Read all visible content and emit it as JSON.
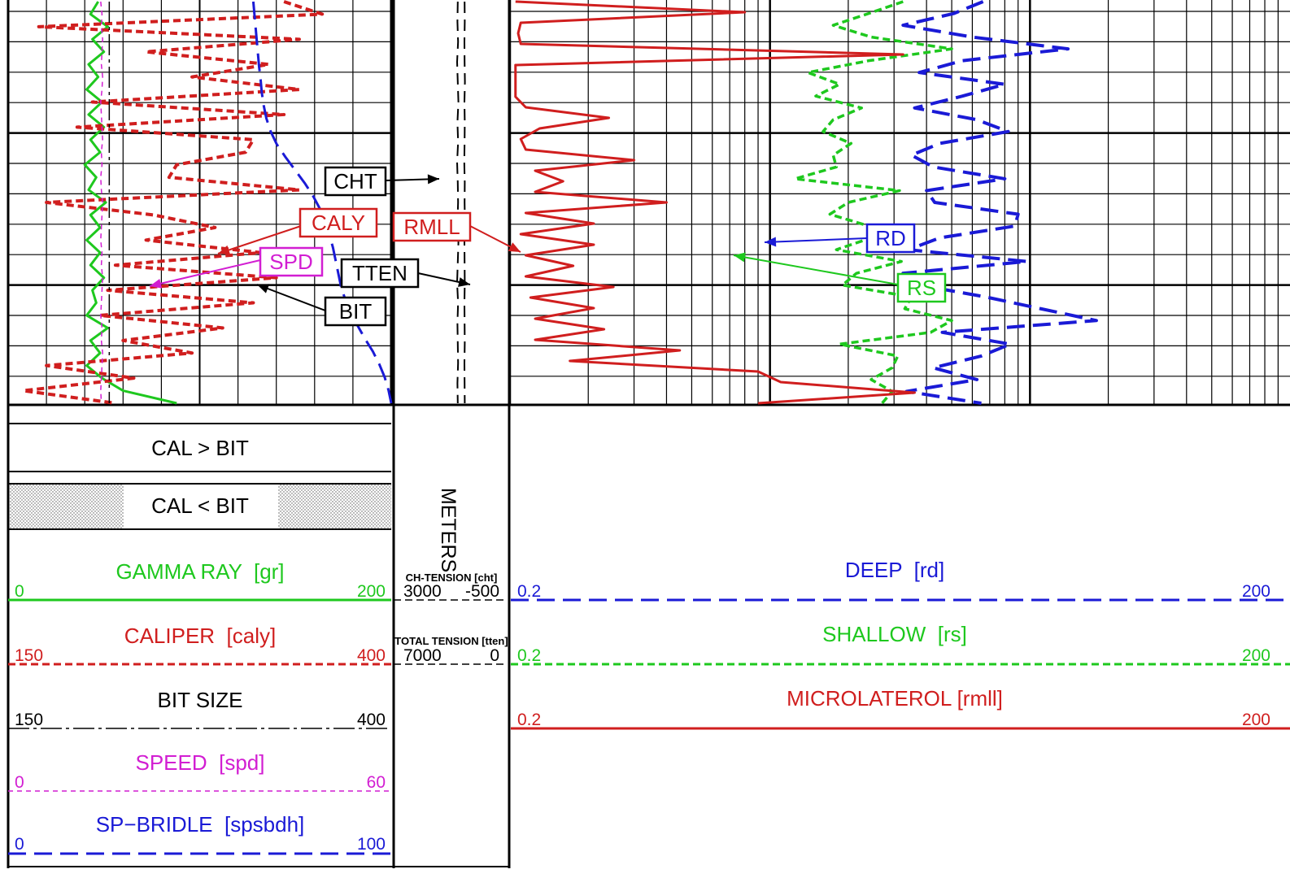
{
  "colors": {
    "gamma": "#1ec81e",
    "caliper": "#d01e1e",
    "bit": "#000000",
    "speed": "#d21ed2",
    "sp": "#1a1ad6",
    "deep": "#1a1ad6",
    "shallow": "#1ec81e",
    "micro": "#d01e1e",
    "grid": "#000000"
  },
  "fill_legend": {
    "cal_gt_bit": "CAL  >  BIT",
    "cal_lt_bit": "CAL  <  BIT"
  },
  "depth_label": "METERS",
  "left_scales": [
    {
      "id": "gamma",
      "label": "GAMMA RAY",
      "mnemonic": "[gr]",
      "min": "0",
      "max": "200",
      "color": "#1ec81e",
      "style": "solid"
    },
    {
      "id": "caliper",
      "label": "CALIPER",
      "mnemonic": "[caly]",
      "min": "150",
      "max": "400",
      "color": "#d01e1e",
      "style": "dashed"
    },
    {
      "id": "bit",
      "label": "BIT SIZE",
      "mnemonic": "",
      "min": "150",
      "max": "400",
      "color": "#000000",
      "style": "dashdot"
    },
    {
      "id": "speed",
      "label": "SPEED",
      "mnemonic": "[spd]",
      "min": "0",
      "max": "60",
      "color": "#d21ed2",
      "style": "thin-dashed"
    },
    {
      "id": "sp",
      "label": "SP−BRIDLE",
      "mnemonic": "[spsbdh]",
      "min": "0",
      "max": "100",
      "color": "#1a1ad6",
      "style": "long-dashed"
    }
  ],
  "mid_scales": [
    {
      "label": "CH-TENSION [cht]",
      "min": "3000",
      "max": "-500"
    },
    {
      "label": "TOTAL TENSION [tten]",
      "min": "7000",
      "max": "0"
    }
  ],
  "right_scales": [
    {
      "id": "deep",
      "label": "DEEP",
      "mnemonic": "[rd]",
      "min": "0.2",
      "max": "200",
      "color": "#1a1ad6",
      "style": "long-dashed"
    },
    {
      "id": "shallow",
      "label": "SHALLOW",
      "mnemonic": "[rs]",
      "min": "0.2",
      "max": "200",
      "color": "#1ec81e",
      "style": "dashed"
    },
    {
      "id": "micro",
      "label": "MICROLATEROL",
      "mnemonic": "[rmll]",
      "min": "0.2",
      "max": "200",
      "color": "#d01e1e",
      "style": "solid"
    }
  ],
  "chart_data": {
    "type": "line",
    "tracks": [
      {
        "name": "track1",
        "scale": "linear",
        "series": [
          {
            "name": "GAMMA RAY",
            "mnemonic": "gr",
            "range": [
              0,
              200
            ],
            "label": "",
            "values": [
              47,
              43,
              52,
              44,
              50,
              42,
              47,
              41,
              49,
              42,
              50,
              43,
              48,
              40,
              46,
              42,
              51,
              43,
              48,
              41,
              48,
              43,
              50,
              44,
              46,
              41,
              52,
              43,
              48,
              41,
              49,
              60,
              88
            ]
          },
          {
            "name": "CALIPER",
            "mnemonic": "caly",
            "range": [
              150,
              400
            ],
            "label": "CALY",
            "values": [
              330,
              355,
              170,
              340,
              240,
              320,
              270,
              340,
              205,
              330,
              195,
              310,
              305,
              260,
              255,
              340,
              175,
              245,
              285,
              240,
              315,
              220,
              325,
              215,
              310,
              210,
              290,
              225,
              270,
              175,
              232,
              160,
              220
            ]
          },
          {
            "name": "BIT SIZE",
            "mnemonic": "bit",
            "range": [
              150,
              400
            ],
            "label": "BIT",
            "values": [
              216,
              216,
              216,
              216,
              216,
              216,
              216,
              216,
              216,
              216,
              216,
              216,
              216,
              216,
              216,
              216,
              216,
              216,
              216,
              216,
              216,
              216,
              216,
              216,
              216,
              216,
              216,
              216,
              216,
              216,
              216,
              216,
              216
            ]
          },
          {
            "name": "SPEED",
            "mnemonic": "spd",
            "range": [
              0,
              60
            ],
            "label": "SPD",
            "values": [
              14.5,
              14.7,
              14.6,
              14.8,
              14.7,
              14.6,
              14.8,
              14.7,
              14.5,
              14.6,
              14.7,
              14.8,
              14.6,
              14.7,
              14.5,
              14.6,
              14.8,
              14.7,
              14.6,
              14.5,
              14.7,
              14.6,
              14.8,
              14.7,
              14.6,
              14.5,
              14.7,
              14.6,
              14.8,
              14.7,
              14.6,
              14.5,
              14.6
            ]
          },
          {
            "name": "SP-BRIDLE",
            "mnemonic": "spsbdh",
            "range": [
              0,
              100
            ],
            "label": "",
            "values": [
              64.0,
              64.3,
              64.6,
              64.9,
              65.2,
              65.5,
              65.9,
              66.2,
              66.7,
              67.4,
              68.5,
              70.1,
              72.4,
              74.9,
              77.4,
              79.6,
              81.4,
              82.8,
              83.9,
              84.8,
              85.5,
              86.2,
              86.9,
              88.0,
              89.5,
              91.2,
              93.1,
              95.2,
              96.9,
              98.3,
              99.3,
              100
            ]
          }
        ]
      },
      {
        "name": "depth-track",
        "scale": "linear",
        "series": [
          {
            "name": "CH-TENSION",
            "mnemonic": "cht",
            "range": [
              3000,
              -500
            ],
            "label": "CHT",
            "values": [
              1030,
              1040,
              1020,
              1050,
              1030,
              1010,
              1040,
              1020,
              1050,
              1030,
              1020,
              1040,
              1010,
              1030,
              1050,
              1020,
              1040,
              1030,
              1020,
              1040,
              1030
            ]
          },
          {
            "name": "TOTAL TENSION",
            "mnemonic": "tten",
            "range": [
              7000,
              0
            ],
            "label": "TTEN",
            "values": [
              2640,
              2630,
              2650,
              2640,
              2620,
              2650,
              2630,
              2640,
              2660,
              2630,
              2640,
              2620,
              2650,
              2640,
              2630,
              2650,
              2640,
              2630,
              2650,
              2640,
              2630
            ]
          }
        ]
      },
      {
        "name": "resistivity-track",
        "scale": "log",
        "series": [
          {
            "name": "DEEP",
            "mnemonic": "rd",
            "range": [
              0.2,
              200
            ],
            "label": "RD",
            "values": [
              13.2,
              10.2,
              6.5,
              12,
              28,
              11,
              7.5,
              16,
              11,
              7.2,
              12.5,
              16.5,
              9,
              7,
              8.5,
              16,
              8,
              8.6,
              18,
              17.5,
              9,
              6.8,
              19.5,
              6.5,
              7.5,
              13.5,
              22,
              36,
              9.2,
              16.8,
              13,
              8.5,
              12.5,
              6.7,
              13
            ]
          },
          {
            "name": "SHALLOW",
            "mnemonic": "rs",
            "range": [
              0.2,
              200
            ],
            "label": "RS",
            "values": [
              6.5,
              4.8,
              3.5,
              4.9,
              10,
              4.8,
              2.8,
              3.7,
              3,
              4.5,
              3.5,
              3.2,
              4.1,
              3.5,
              3.6,
              2.5,
              6.3,
              4,
              3.4,
              4.8,
              4.9,
              3.6,
              6.4,
              4.3,
              3.8,
              7,
              6.6,
              10,
              8.3,
              3.7,
              6.2,
              5.9,
              4.9,
              5.9,
              5.4
            ]
          },
          {
            "name": "MICROLATEROL",
            "mnemonic": "rmll",
            "range": [
              0.2,
              200
            ],
            "label": "RMLL",
            "values": [
              0.21,
              1.6,
              0.22,
              0.215,
              0.22,
              6.5,
              0.21,
              0.21,
              0.21,
              0.21,
              0.23,
              0.48,
              0.26,
              0.22,
              0.23,
              0.6,
              0.25,
              0.32,
              0.25,
              0.8,
              0.23,
              0.42,
              0.22,
              0.42,
              0.23,
              0.35,
              0.23,
              0.5,
              0.24,
              0.42,
              0.25,
              0.46,
              0.25,
              0.9,
              0.34,
              1.8,
              2.2,
              7.2,
              1.8
            ]
          }
        ]
      }
    ]
  }
}
